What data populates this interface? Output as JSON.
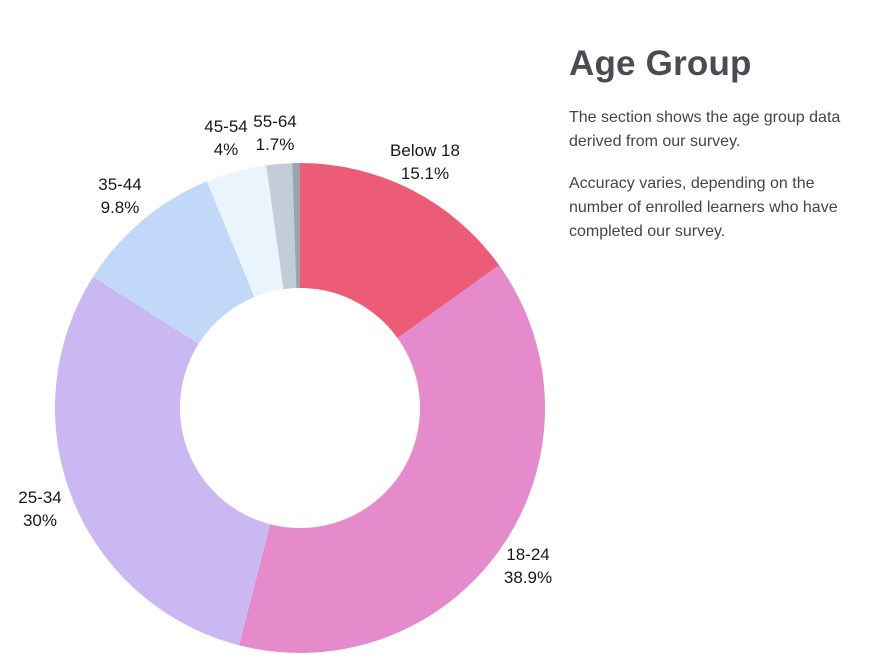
{
  "header": {
    "title": "Age Group",
    "description_1": "The section shows the age group data derived from our survey.",
    "description_2": "Accuracy varies, depending on the number of enrolled learners who have completed our survey."
  },
  "chart_data": {
    "type": "pie",
    "style": "donut",
    "title": "Age Group",
    "legend_position": "none",
    "labels_position": "outside",
    "direction": "clockwise",
    "start_angle": "12-oclock",
    "inner_radius_ratio": 0.49,
    "slices": [
      {
        "label": "Below 18",
        "value": 15.1,
        "pct_label": "15.1%",
        "color": "#ec5c77"
      },
      {
        "label": "18-24",
        "value": 38.9,
        "pct_label": "38.9%",
        "color": "#e58acb"
      },
      {
        "label": "25-34",
        "value": 30,
        "pct_label": "30%",
        "color": "#cab8f3"
      },
      {
        "label": "35-44",
        "value": 9.8,
        "pct_label": "9.8%",
        "color": "#c2d8f8"
      },
      {
        "label": "45-54",
        "value": 4,
        "pct_label": "4%",
        "color": "#e9f4fc"
      },
      {
        "label": "55-64",
        "value": 1.7,
        "pct_label": "1.7%",
        "color": "#c3cdd8"
      },
      {
        "label": "",
        "value": 0.5,
        "pct_label": "",
        "color": "#9ca4b0"
      }
    ]
  }
}
